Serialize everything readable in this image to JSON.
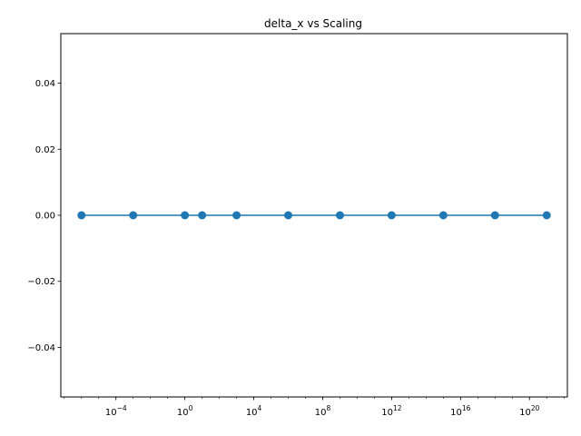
{
  "chart_data": {
    "type": "line",
    "title": "delta_x vs Scaling",
    "xlabel": "",
    "ylabel": "",
    "xscale": "log",
    "yscale": "linear",
    "xlim_log10": [
      -7.2,
      22.2
    ],
    "ylim": [
      -0.055,
      0.055
    ],
    "grid": false,
    "legend": "none",
    "series": [
      {
        "x": [
          1e-06,
          0.001,
          1,
          10,
          1000,
          1000000.0,
          1000000000.0,
          1000000000000.0,
          1000000000000000.0,
          1e+18,
          1e+21
        ],
        "y": [
          0,
          0,
          0,
          0,
          0,
          0,
          0,
          0,
          0,
          0,
          0
        ],
        "color": "#1f77b4",
        "marker": "circle"
      }
    ],
    "xticks": [
      {
        "base": "10",
        "exp": "−4",
        "log10": -4
      },
      {
        "base": "10",
        "exp": "0",
        "log10": 0
      },
      {
        "base": "10",
        "exp": "4",
        "log10": 4
      },
      {
        "base": "10",
        "exp": "8",
        "log10": 8
      },
      {
        "base": "10",
        "exp": "12",
        "log10": 12
      },
      {
        "base": "10",
        "exp": "16",
        "log10": 16
      },
      {
        "base": "10",
        "exp": "20",
        "log10": 20
      }
    ],
    "yticks": [
      {
        "value": -0.04,
        "label": "−0.04"
      },
      {
        "value": -0.02,
        "label": "−0.02"
      },
      {
        "value": 0.0,
        "label": "0.00"
      },
      {
        "value": 0.02,
        "label": "0.02"
      },
      {
        "value": 0.04,
        "label": "0.04"
      }
    ]
  }
}
